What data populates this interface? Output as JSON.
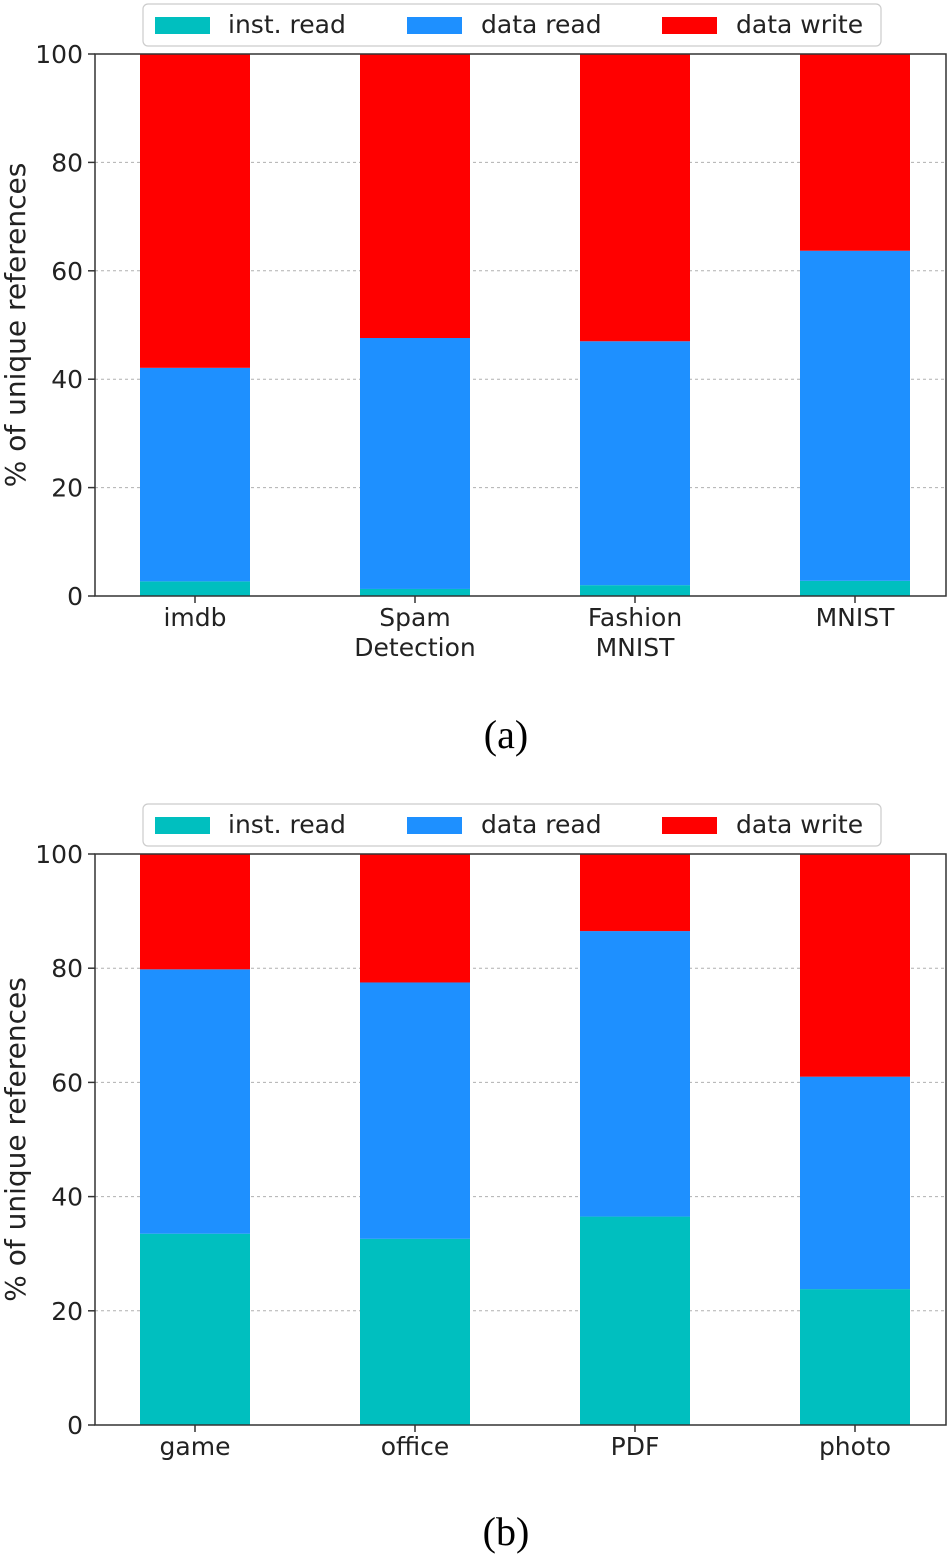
{
  "chart_data": [
    {
      "type": "bar",
      "stacked": true,
      "caption": "(a)",
      "categories": [
        [
          "imdb"
        ],
        [
          "Spam",
          "Detection"
        ],
        [
          "Fashion",
          "MNIST"
        ],
        [
          "MNIST"
        ]
      ],
      "series": [
        {
          "name": "inst. read",
          "color": "#00BFBF",
          "values": [
            2.7,
            1.3,
            2.0,
            2.8
          ]
        },
        {
          "name": "data read",
          "color": "#1E90FF",
          "values": [
            39.4,
            46.3,
            45.0,
            60.9
          ]
        },
        {
          "name": "data write",
          "color": "#FF0000",
          "values": [
            57.9,
            52.4,
            53.0,
            36.3
          ]
        }
      ],
      "ylabel": "% of unique references",
      "ylim": [
        0,
        100
      ],
      "yticks": [
        0,
        20,
        40,
        60,
        80,
        100
      ],
      "grid": "y-dashed",
      "legend": "top-outside"
    },
    {
      "type": "bar",
      "stacked": true,
      "caption": "(b)",
      "categories": [
        [
          "game"
        ],
        [
          "office"
        ],
        [
          "PDF"
        ],
        [
          "photo"
        ]
      ],
      "series": [
        {
          "name": "inst. read",
          "color": "#00BFBF",
          "values": [
            33.5,
            32.6,
            36.5,
            23.8
          ]
        },
        {
          "name": "data read",
          "color": "#1E90FF",
          "values": [
            46.3,
            44.9,
            50.0,
            37.2
          ]
        },
        {
          "name": "data write",
          "color": "#FF0000",
          "values": [
            20.2,
            22.5,
            13.5,
            39.0
          ]
        }
      ],
      "ylabel": "% of unique references",
      "ylim": [
        0,
        100
      ],
      "yticks": [
        0,
        20,
        40,
        60,
        80,
        100
      ],
      "grid": "y-dashed",
      "legend": "top-outside"
    }
  ]
}
